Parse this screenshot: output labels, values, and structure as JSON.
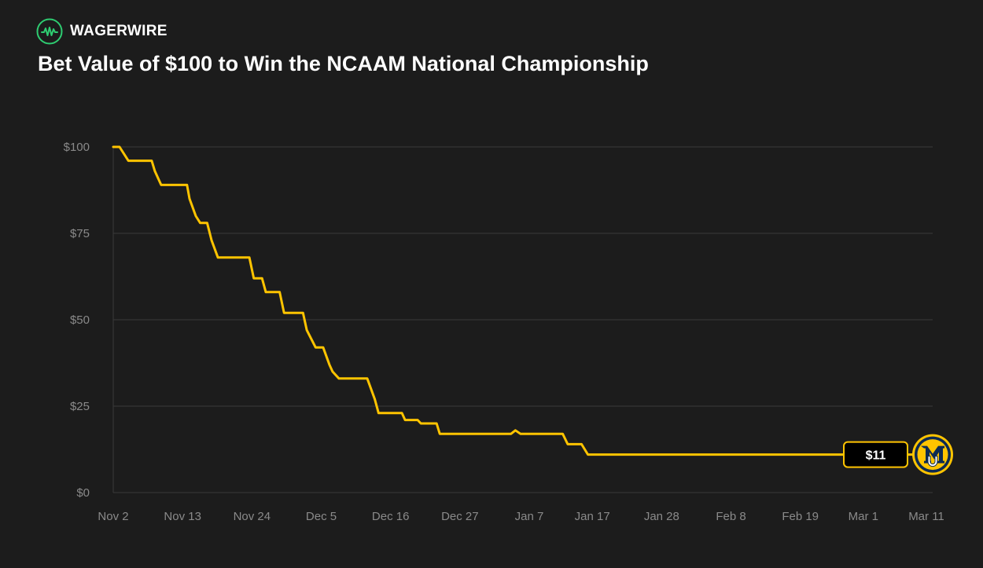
{
  "brand": {
    "name": "WAGERWIRE",
    "icon": "pulse-circle-icon",
    "accent_color": "#2ecc71"
  },
  "colors": {
    "background": "#1c1c1c",
    "line": "#ffc400",
    "grid": "#3a3a3a",
    "tick_text": "#8a8a8a",
    "label_box_fill": "#000000"
  },
  "chart_data": {
    "type": "line",
    "title": "Bet Value of $100 to Win the NCAAM National Championship",
    "xlabel": "",
    "ylabel": "",
    "ylim": [
      0,
      100
    ],
    "xlim_days": [
      0,
      130
    ],
    "y_ticks": [
      {
        "value": 0,
        "label": "$0"
      },
      {
        "value": 25,
        "label": "$25"
      },
      {
        "value": 50,
        "label": "$50"
      },
      {
        "value": 75,
        "label": "$75"
      },
      {
        "value": 100,
        "label": "$100"
      }
    ],
    "x_ticks": [
      {
        "day": 0,
        "label": "Nov 2"
      },
      {
        "day": 11,
        "label": "Nov 13"
      },
      {
        "day": 22,
        "label": "Nov 24"
      },
      {
        "day": 33,
        "label": "Dec 5"
      },
      {
        "day": 44,
        "label": "Dec 16"
      },
      {
        "day": 55,
        "label": "Dec 27"
      },
      {
        "day": 66,
        "label": "Jan 7"
      },
      {
        "day": 76,
        "label": "Jan 17"
      },
      {
        "day": 87,
        "label": "Jan 28"
      },
      {
        "day": 98,
        "label": "Feb 8"
      },
      {
        "day": 109,
        "label": "Feb 19"
      },
      {
        "day": 119,
        "label": "Mar 1"
      },
      {
        "day": 129,
        "label": "Mar 11"
      }
    ],
    "grid": true,
    "series": [
      {
        "name": "Bet value",
        "x_days": [
          0,
          1,
          2.4,
          6.1,
          6.6,
          7.6,
          11.7,
          12.1,
          13.1,
          13.8,
          14.9,
          15.6,
          16.6,
          21.6,
          22.3,
          23.6,
          24.2,
          26.4,
          27.1,
          30.1,
          30.7,
          32.1,
          33.3,
          34.3,
          34.8,
          35.8,
          40.3,
          41.5,
          42.1,
          45.8,
          46.3,
          48.3,
          48.8,
          51.3,
          51.8,
          63.1,
          63.8,
          64.6,
          71.3,
          72.1,
          74.3,
          75.3,
          129.1
        ],
        "values": [
          100,
          100,
          96,
          96,
          93,
          89,
          89,
          85,
          80,
          78,
          78,
          73,
          68,
          68,
          62,
          62,
          58,
          58,
          52,
          52,
          47,
          42,
          42,
          37,
          35,
          33,
          33,
          27,
          23,
          23,
          21,
          21,
          20,
          20,
          17,
          17,
          18,
          17,
          17,
          14,
          14,
          11,
          11
        ]
      }
    ],
    "end_label": "$11",
    "team_logo": "marquette-mu-logo"
  }
}
